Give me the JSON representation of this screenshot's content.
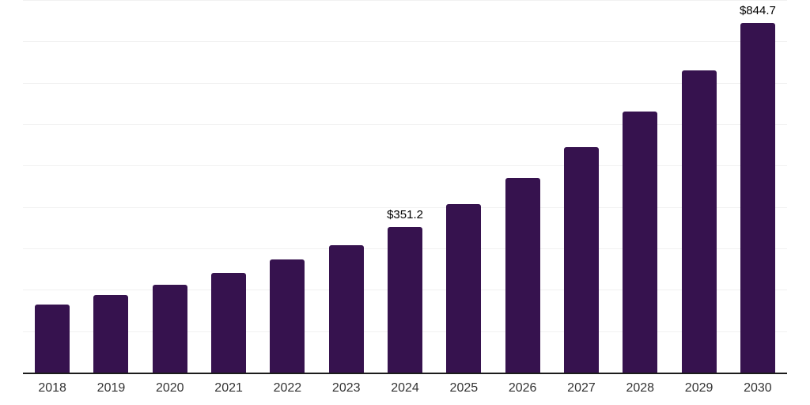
{
  "chart": {
    "background_color": "#ffffff",
    "bar_color": "#36124E",
    "gridline_color": "#f1f1f1",
    "axis_line_color": "#1c1c1c",
    "x_label_color": "#333333",
    "value_label_color": "#000000"
  },
  "chart_data": {
    "type": "bar",
    "title": "",
    "xlabel": "",
    "ylabel": "",
    "categories": [
      "2018",
      "2019",
      "2020",
      "2021",
      "2022",
      "2023",
      "2024",
      "2025",
      "2026",
      "2027",
      "2028",
      "2029",
      "2030"
    ],
    "values": [
      165.0,
      187.1,
      212.5,
      241.0,
      273.9,
      308.6,
      351.2,
      406.5,
      470.6,
      544.7,
      630.5,
      729.8,
      844.7
    ],
    "data_labels": {
      "2024": "$351.2",
      "2030": "$844.7"
    },
    "ylim": [
      0,
      900
    ],
    "grid_step": 100,
    "grid": "horizontal",
    "y_axis_tick_labels_visible": false,
    "legend": "none"
  }
}
